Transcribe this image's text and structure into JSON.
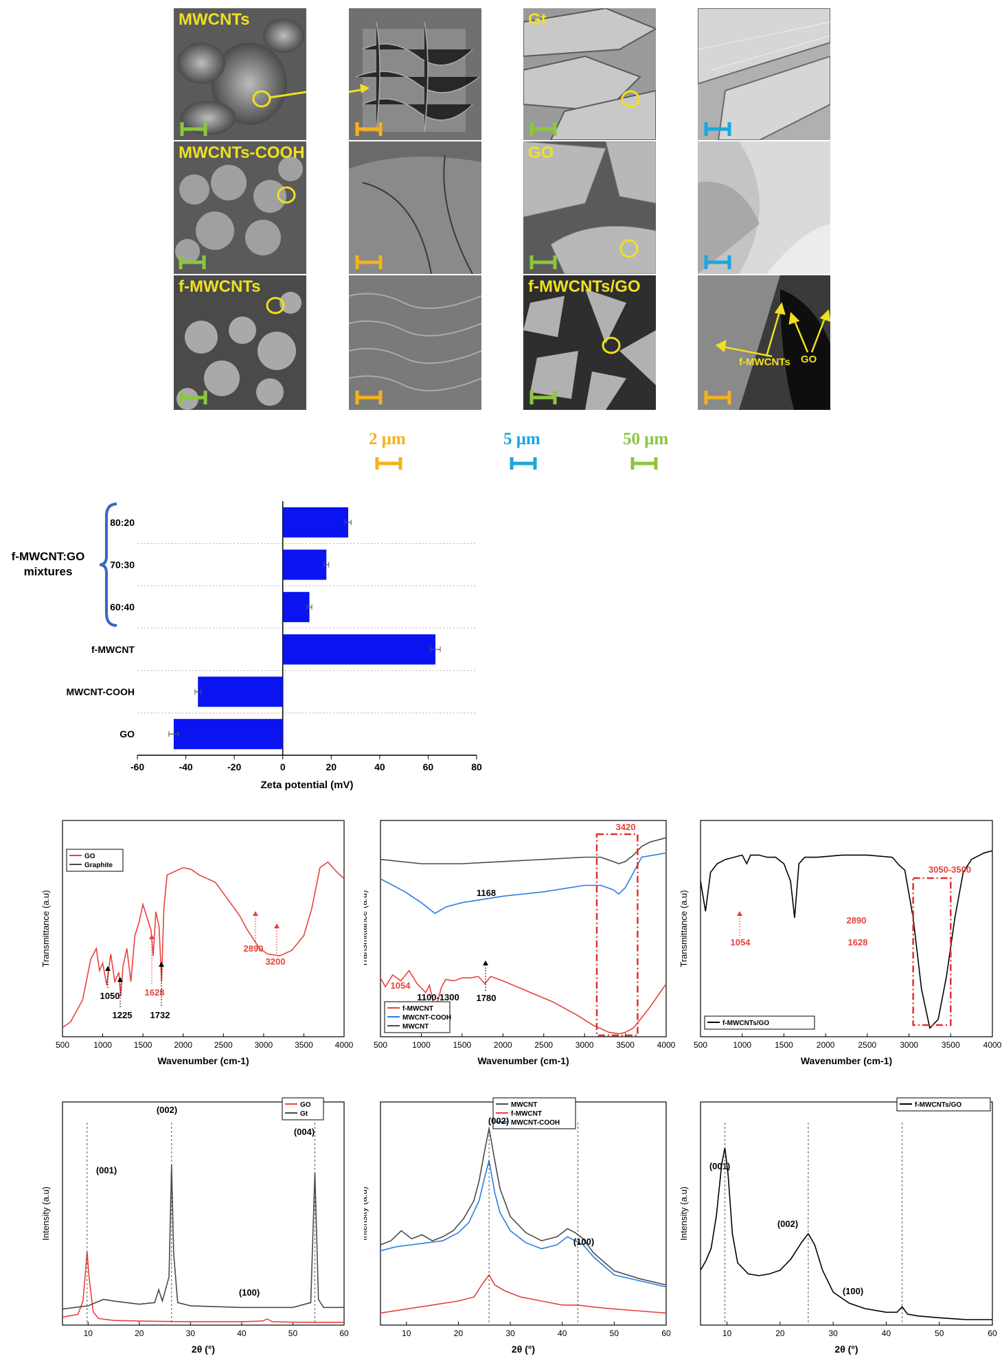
{
  "colors": {
    "label_yellow": "#f0e020",
    "scale_orange": "#f5b21a",
    "scale_blue": "#1aa7e0",
    "scale_green": "#8cc63e",
    "bar_blue": "#0a14f0",
    "ir_red": "#e8413c",
    "ir_blue": "#2a7be0",
    "ir_gray": "#4a4a4a"
  },
  "sem": {
    "labels": {
      "mwcnts": "MWCNTs",
      "gt": "Gt",
      "mwcnts_cooh": "MWCNTs-COOH",
      "go": "GO",
      "f_mwcnts": "f-MWCNTs",
      "f_mwcnts_go": "f-MWCNTs/GO"
    },
    "annotations": {
      "f_mwcnts": "f-MWCNTs",
      "go": "GO"
    },
    "scale_legend": [
      {
        "label": "2 μm",
        "color_key": "scale_orange"
      },
      {
        "label": "5 μm",
        "color_key": "scale_blue"
      },
      {
        "label": "50 μm",
        "color_key": "scale_green"
      }
    ]
  },
  "zeta": {
    "group_label_line1": "f-MWCNT:GO",
    "group_label_line2": "mixtures",
    "chart_data": {
      "type": "bar",
      "orientation": "horizontal",
      "categories": [
        "80:20",
        "70:30",
        "60:40",
        "f-MWCNT",
        "MWCNT-COOH",
        "GO"
      ],
      "values": [
        27,
        18,
        11,
        63,
        -35,
        -45
      ],
      "errors": [
        1.2,
        1.0,
        1.0,
        2.0,
        1.2,
        2.0
      ],
      "xlabel": "Zeta potential (mV)",
      "xlim": [
        -60,
        80
      ],
      "xticks": [
        -60,
        -40,
        -20,
        0,
        20,
        40,
        60,
        80
      ],
      "grid": "dotted horizontal separators"
    }
  },
  "chart_data": [
    {
      "type": "line",
      "panel": "FTIR GO/Graphite",
      "xlabel": "Wavenumber (cm-1)",
      "ylabel": "Transmittance (a.u)",
      "xlim": [
        500,
        4000
      ],
      "xticks": [
        500,
        1000,
        1500,
        2000,
        2500,
        3000,
        3500,
        4000
      ],
      "legend": [
        "GO",
        "Graphite"
      ],
      "annotations_black": [
        "1050",
        "1225",
        "1732"
      ],
      "annotations_red": [
        "1628",
        "2890",
        "3200"
      ],
      "series": [
        {
          "name": "GO",
          "x": [
            500,
            600,
            750,
            850,
            920,
            960,
            1000,
            1050,
            1100,
            1150,
            1200,
            1225,
            1250,
            1300,
            1350,
            1400,
            1450,
            1500,
            1550,
            1600,
            1628,
            1660,
            1700,
            1732,
            1760,
            1800,
            1900,
            2000,
            2100,
            2200,
            2300,
            2400,
            2500,
            2600,
            2700,
            2800,
            2890,
            2950,
            3050,
            3200,
            3350,
            3500,
            3600,
            3700,
            3800,
            3900,
            4000
          ],
          "y": [
            0.05,
            0.08,
            0.2,
            0.42,
            0.48,
            0.36,
            0.4,
            0.28,
            0.45,
            0.3,
            0.35,
            0.22,
            0.38,
            0.48,
            0.3,
            0.55,
            0.62,
            0.72,
            0.65,
            0.58,
            0.44,
            0.68,
            0.6,
            0.3,
            0.7,
            0.88,
            0.9,
            0.92,
            0.91,
            0.88,
            0.86,
            0.84,
            0.78,
            0.72,
            0.66,
            0.58,
            0.52,
            0.48,
            0.45,
            0.44,
            0.47,
            0.55,
            0.7,
            0.92,
            0.95,
            0.9,
            0.86
          ]
        },
        {
          "name": "Graphite",
          "x": [
            500,
            4000
          ],
          "y": [
            1.0,
            1.0
          ]
        }
      ]
    },
    {
      "type": "line",
      "panel": "FTIR MWCNTs",
      "xlabel": "Wavenumber (cm-1)",
      "ylabel": "Transmittance (a.u)",
      "xlim": [
        500,
        4000
      ],
      "xticks": [
        500,
        1000,
        1500,
        2000,
        2500,
        3000,
        3500,
        4000
      ],
      "legend": [
        "f-MWCNT",
        "MWCNT-COOH",
        "MWCNT"
      ],
      "annotations_black": [
        "1168",
        "1100-1300",
        "1780"
      ],
      "annotations_red": [
        "3420",
        "1054"
      ],
      "series": [
        {
          "name": "MWCNT",
          "x": [
            500,
            1000,
            1500,
            2000,
            2500,
            3000,
            3200,
            3350,
            3420,
            3500,
            3600,
            3700,
            3800,
            4000
          ],
          "y": [
            0.88,
            0.86,
            0.86,
            0.87,
            0.88,
            0.89,
            0.89,
            0.87,
            0.86,
            0.87,
            0.9,
            0.94,
            0.96,
            0.98
          ]
        },
        {
          "name": "MWCNT-COOH",
          "x": [
            500,
            800,
            1000,
            1168,
            1300,
            1500,
            2000,
            2500,
            3000,
            3200,
            3350,
            3420,
            3500,
            3600,
            3700,
            4000
          ],
          "y": [
            0.68,
            0.62,
            0.57,
            0.52,
            0.55,
            0.57,
            0.6,
            0.62,
            0.65,
            0.65,
            0.63,
            0.61,
            0.64,
            0.71,
            0.78,
            0.8
          ]
        },
        {
          "name": "f-MWCNT",
          "x": [
            500,
            560,
            650,
            750,
            850,
            950,
            1054,
            1100,
            1168,
            1250,
            1300,
            1400,
            1500,
            1600,
            1700,
            1780,
            1850,
            2000,
            2300,
            2600,
            2900,
            3100,
            3300,
            3420,
            3500,
            3600,
            3700,
            3800,
            3900,
            4000
          ],
          "y": [
            0.4,
            0.34,
            0.42,
            0.38,
            0.45,
            0.36,
            0.3,
            0.35,
            0.18,
            0.34,
            0.39,
            0.38,
            0.4,
            0.4,
            0.41,
            0.36,
            0.41,
            0.38,
            0.31,
            0.24,
            0.15,
            0.08,
            0.03,
            0.02,
            0.03,
            0.06,
            0.13,
            0.2,
            0.28,
            0.36
          ]
        }
      ]
    },
    {
      "type": "line",
      "panel": "FTIR f-MWCNTs/GO",
      "xlabel": "Wavenumber (cm-1)",
      "ylabel": "Transmittance (a.u)",
      "xlim": [
        500,
        4000
      ],
      "xticks": [
        500,
        1000,
        1500,
        2000,
        2500,
        3000,
        3500,
        4000
      ],
      "legend": [
        "f-MWCNTs/GO"
      ],
      "annotations_red": [
        "3050-3500",
        "1054",
        "1628",
        "2890"
      ],
      "series": [
        {
          "name": "f-MWCNTs/GO",
          "x": [
            500,
            560,
            620,
            700,
            800,
            900,
            1000,
            1054,
            1100,
            1200,
            1300,
            1400,
            1500,
            1580,
            1628,
            1680,
            1750,
            1900,
            2200,
            2500,
            2800,
            2890,
            2950,
            3050,
            3150,
            3250,
            3350,
            3450,
            3550,
            3650,
            3750,
            3900,
            4000
          ],
          "y": [
            0.72,
            0.58,
            0.76,
            0.8,
            0.82,
            0.83,
            0.84,
            0.8,
            0.84,
            0.84,
            0.83,
            0.83,
            0.8,
            0.72,
            0.55,
            0.8,
            0.83,
            0.83,
            0.84,
            0.84,
            0.83,
            0.79,
            0.77,
            0.55,
            0.22,
            0.04,
            0.08,
            0.28,
            0.55,
            0.76,
            0.82,
            0.85,
            0.86
          ]
        }
      ]
    },
    {
      "type": "line",
      "panel": "XRD GO/Gt",
      "xlabel": "2θ (°)",
      "ylabel": "Intensity (a.u)",
      "xlim": [
        5,
        60
      ],
      "xticks": [
        10,
        20,
        30,
        40,
        50,
        60
      ],
      "legend": [
        "GO",
        "Gt"
      ],
      "peak_labels": [
        "(001)",
        "(002)",
        "(004)",
        "(100)"
      ],
      "series": [
        {
          "name": "GO",
          "x": [
            5,
            8,
            9,
            9.5,
            9.8,
            10.2,
            11,
            12,
            15,
            20,
            30,
            40,
            44,
            45,
            46,
            50,
            55,
            60
          ],
          "y": [
            0.06,
            0.08,
            0.18,
            0.4,
            0.55,
            0.35,
            0.1,
            0.05,
            0.035,
            0.03,
            0.025,
            0.025,
            0.03,
            0.045,
            0.025,
            0.022,
            0.02,
            0.02
          ]
        },
        {
          "name": "Gt",
          "x": [
            5,
            10,
            13,
            15,
            20,
            23,
            23.8,
            24.5,
            25.8,
            26.3,
            26.7,
            27.5,
            30,
            40,
            50,
            53.5,
            54.3,
            55,
            56,
            60
          ],
          "y": [
            0.1,
            0.12,
            0.16,
            0.15,
            0.13,
            0.14,
            0.22,
            0.15,
            0.3,
            1.0,
            0.45,
            0.14,
            0.12,
            0.11,
            0.11,
            0.14,
            0.95,
            0.16,
            0.11,
            0.11
          ]
        }
      ]
    },
    {
      "type": "line",
      "panel": "XRD MWCNTs",
      "xlabel": "2θ (°)",
      "ylabel": "Intensity (a.u)",
      "xlim": [
        5,
        60
      ],
      "xticks": [
        10,
        20,
        30,
        40,
        50,
        60
      ],
      "legend": [
        "MWCNT",
        "f-MWCNT",
        "MWCNT-COOH"
      ],
      "peak_labels": [
        "(002)",
        "(100)"
      ],
      "series": [
        {
          "name": "MWCNT",
          "x": [
            5,
            7,
            9,
            11,
            13,
            15,
            17,
            19,
            21,
            23,
            24,
            25,
            25.9,
            27,
            28,
            30,
            33,
            36,
            39,
            41,
            42.5,
            44,
            46,
            50,
            55,
            60
          ],
          "y": [
            0.4,
            0.42,
            0.47,
            0.43,
            0.45,
            0.42,
            0.44,
            0.47,
            0.53,
            0.62,
            0.72,
            0.86,
            0.98,
            0.82,
            0.68,
            0.54,
            0.46,
            0.42,
            0.44,
            0.48,
            0.46,
            0.43,
            0.36,
            0.27,
            0.23,
            0.2
          ]
        },
        {
          "name": "MWCNT-COOH",
          "x": [
            5,
            8,
            11,
            14,
            17,
            20,
            22,
            24,
            25,
            25.9,
            27,
            28,
            30,
            33,
            36,
            39,
            41,
            42.5,
            44,
            46,
            50,
            55,
            60
          ],
          "y": [
            0.37,
            0.39,
            0.4,
            0.41,
            0.42,
            0.46,
            0.51,
            0.62,
            0.73,
            0.82,
            0.66,
            0.56,
            0.47,
            0.41,
            0.38,
            0.4,
            0.44,
            0.42,
            0.4,
            0.34,
            0.25,
            0.22,
            0.19
          ]
        },
        {
          "name": "f-MWCNT",
          "x": [
            5,
            10,
            15,
            20,
            23,
            24.5,
            25.9,
            27,
            29,
            32,
            36,
            40,
            43,
            46,
            50,
            55,
            60
          ],
          "y": [
            0.06,
            0.08,
            0.1,
            0.12,
            0.14,
            0.2,
            0.25,
            0.2,
            0.17,
            0.14,
            0.12,
            0.1,
            0.1,
            0.09,
            0.08,
            0.07,
            0.06
          ]
        }
      ]
    },
    {
      "type": "line",
      "panel": "XRD f-MWCNTs/GO",
      "xlabel": "2θ (°)",
      "ylabel": "Intensity (a.u)",
      "xlim": [
        5,
        60
      ],
      "xticks": [
        10,
        20,
        30,
        40,
        50,
        60
      ],
      "legend": [
        "f-MWCNTs/GO"
      ],
      "peak_labels": [
        "(001)",
        "(002)",
        "(100)"
      ],
      "series": [
        {
          "name": "f-MWCNTs/GO",
          "x": [
            5,
            6,
            7,
            8,
            9,
            9.6,
            10.2,
            11,
            12,
            14,
            16,
            18,
            20,
            22,
            24,
            25.3,
            26.5,
            28,
            30,
            33,
            36,
            40,
            42,
            43,
            44,
            46,
            50,
            55,
            60
          ],
          "y": [
            0.3,
            0.35,
            0.42,
            0.6,
            0.88,
            0.97,
            0.82,
            0.5,
            0.34,
            0.28,
            0.27,
            0.28,
            0.3,
            0.36,
            0.45,
            0.5,
            0.44,
            0.3,
            0.18,
            0.12,
            0.09,
            0.07,
            0.07,
            0.1,
            0.06,
            0.05,
            0.04,
            0.03,
            0.03
          ]
        }
      ]
    }
  ]
}
